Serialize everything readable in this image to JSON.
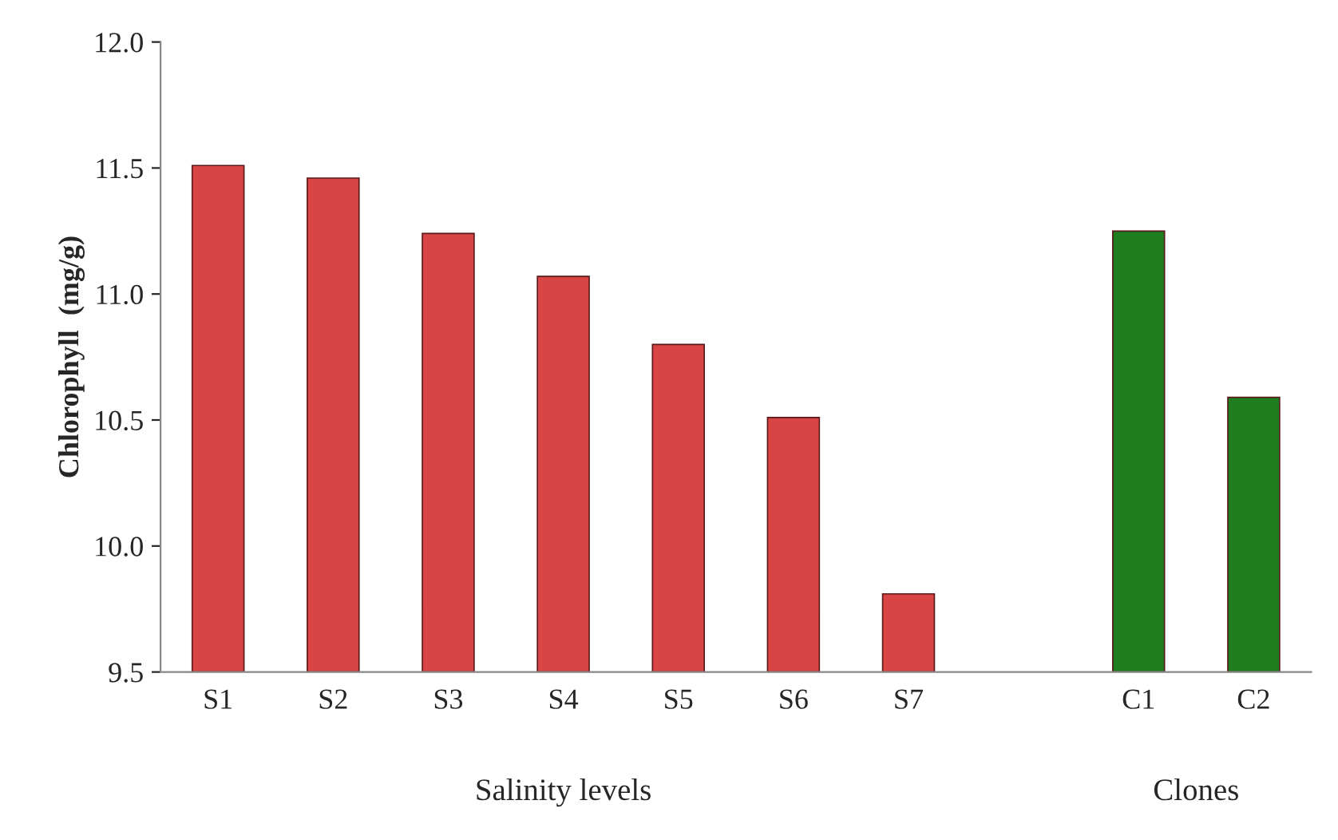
{
  "chart_data": {
    "type": "bar",
    "ylabel": "Chlorophyll  (mg/g)",
    "categories": [
      "S1",
      "S2",
      "S3",
      "S4",
      "S5",
      "S6",
      "S7",
      null,
      "C1",
      "C2"
    ],
    "values": [
      11.51,
      11.46,
      11.24,
      11.07,
      10.8,
      10.51,
      9.81,
      null,
      11.25,
      10.59
    ],
    "colors": [
      "#d94444",
      "#d94444",
      "#d94444",
      "#d94444",
      "#d94444",
      "#d94444",
      "#d94444",
      "#d94444",
      "#1e7d1e",
      "#1e7d1e"
    ],
    "ylim": [
      9.5,
      12.0
    ],
    "yticks": [
      {
        "value": 9.5,
        "label": "9.5"
      },
      {
        "value": 10.0,
        "label": "10.0"
      },
      {
        "value": 10.5,
        "label": "10.5"
      },
      {
        "value": 11.0,
        "label": "11.0"
      },
      {
        "value": 11.5,
        "label": "11.5"
      },
      {
        "value": 12.0,
        "label": "12.0"
      }
    ],
    "grid": false,
    "annotations": [
      "Salinity levels",
      "Clones"
    ]
  }
}
